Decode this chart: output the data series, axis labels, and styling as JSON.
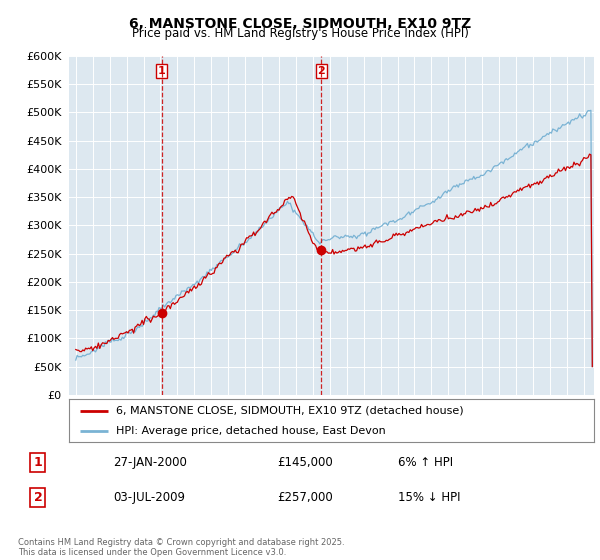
{
  "title": "6, MANSTONE CLOSE, SIDMOUTH, EX10 9TZ",
  "subtitle": "Price paid vs. HM Land Registry's House Price Index (HPI)",
  "legend_line1": "6, MANSTONE CLOSE, SIDMOUTH, EX10 9TZ (detached house)",
  "legend_line2": "HPI: Average price, detached house, East Devon",
  "annotation1_label": "1",
  "annotation1_date": "27-JAN-2000",
  "annotation1_price": "£145,000",
  "annotation1_hpi": "6% ↑ HPI",
  "annotation2_label": "2",
  "annotation2_date": "03-JUL-2009",
  "annotation2_price": "£257,000",
  "annotation2_hpi": "15% ↓ HPI",
  "footer": "Contains HM Land Registry data © Crown copyright and database right 2025.\nThis data is licensed under the Open Government Licence v3.0.",
  "hpi_color": "#7ab3d4",
  "price_color": "#cc0000",
  "marker1_x": 2000.08,
  "marker1_y": 145000,
  "marker2_x": 2009.5,
  "marker2_y": 257000,
  "vline1_x": 2000.08,
  "vline2_x": 2009.5,
  "ylim": [
    0,
    600000
  ],
  "ytick_step": 50000,
  "xlim_start": 1994.6,
  "xlim_end": 2025.6,
  "bg_color": "#dde8f0"
}
